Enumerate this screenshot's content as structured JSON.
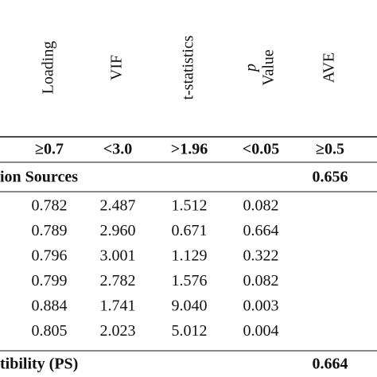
{
  "table": {
    "headers": [
      "Loading",
      "VIF",
      "t-statistics",
      [
        "p",
        "Value"
      ],
      "AVE"
    ],
    "thresholds": [
      "≥0.7",
      "<3.0",
      ">1.96",
      "<0.05",
      "≥0.5"
    ],
    "sections": [
      {
        "title": "ion Sources",
        "ave": "0.656",
        "rows": [
          [
            "0.782",
            "2.487",
            "1.512",
            "0.082"
          ],
          [
            "0.789",
            "2.960",
            "0.671",
            "0.664"
          ],
          [
            "0.796",
            "3.001",
            "1.129",
            "0.322"
          ],
          [
            "0.799",
            "2.782",
            "1.576",
            "0.082"
          ],
          [
            "0.884",
            "1.741",
            "9.040",
            "0.003"
          ],
          [
            "0.805",
            "2.023",
            "5.012",
            "0.004"
          ]
        ]
      },
      {
        "title": "tibility (PS)",
        "ave": "0.664"
      }
    ]
  }
}
